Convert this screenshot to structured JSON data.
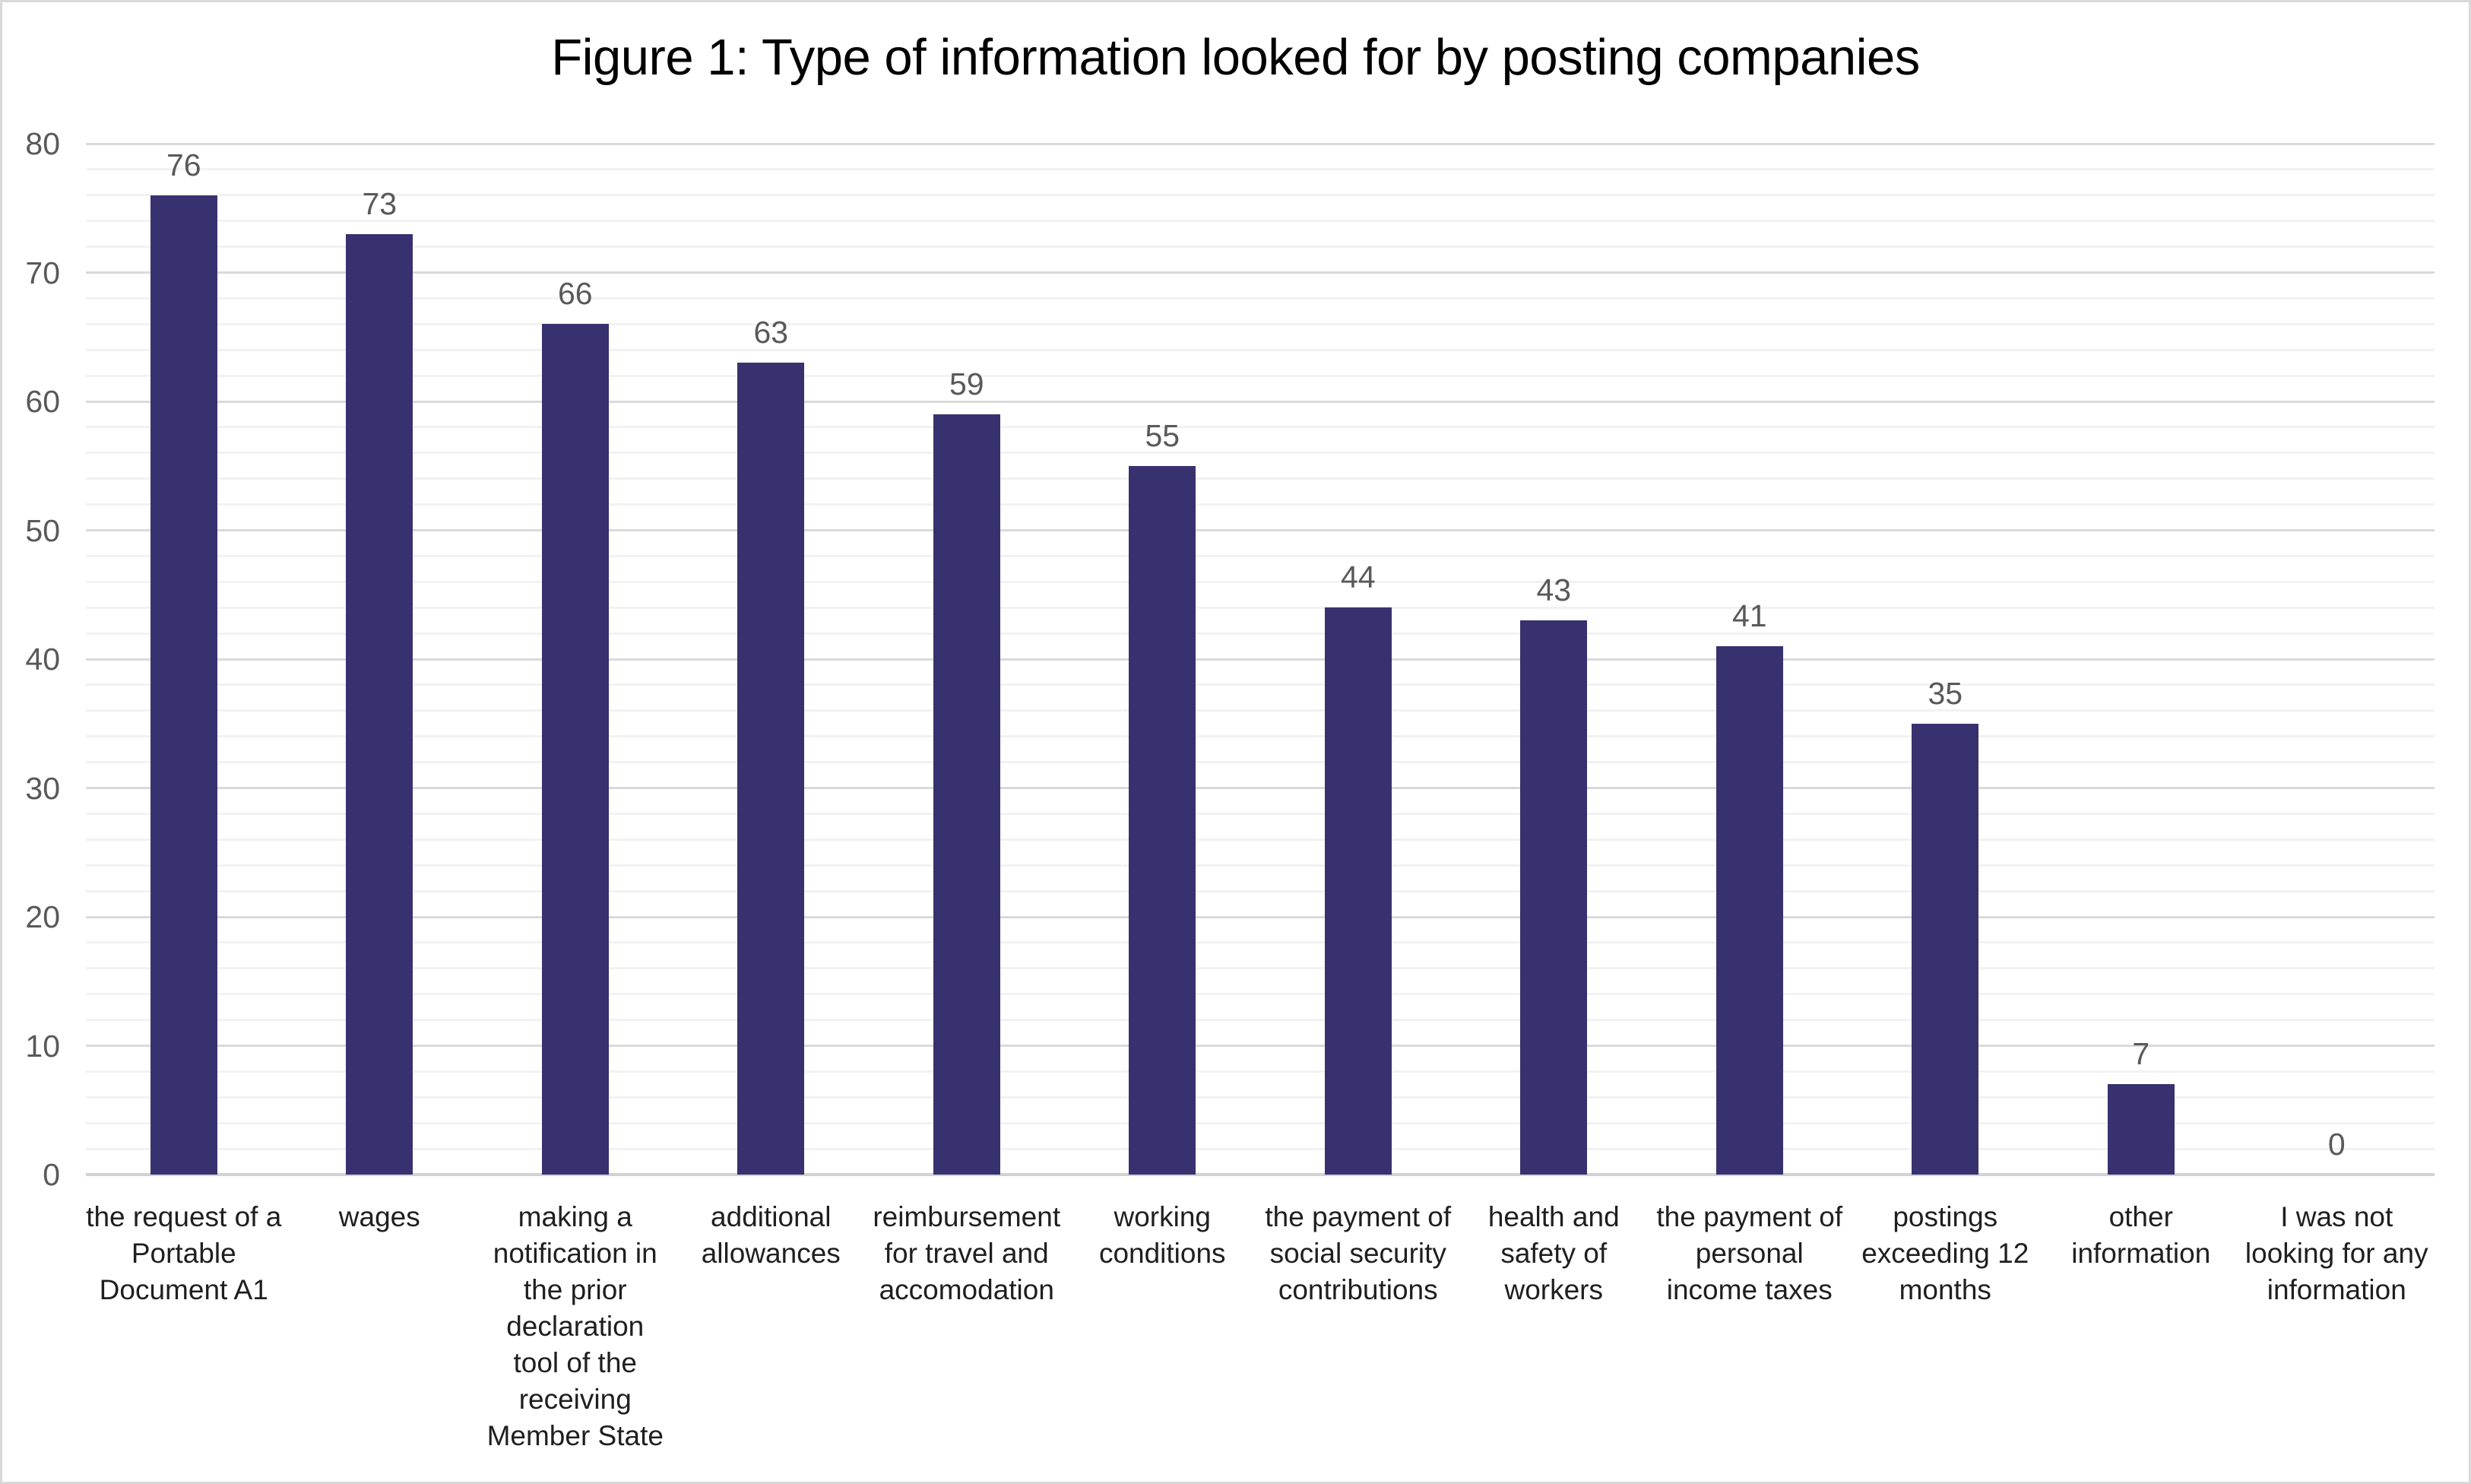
{
  "chart_data": {
    "type": "bar",
    "title": "Figure 1: Type of information looked for by posting companies",
    "categories": [
      "the request of a\nPortable\nDocument A1",
      "wages",
      "making a\nnotification in\nthe prior\ndeclaration\ntool of the\nreceiving\nMember State",
      "additional\nallowances",
      "reimbursement\nfor travel and\naccomodation",
      "working\nconditions",
      "the payment of\nsocial security\ncontributions",
      "health and\nsafety of\nworkers",
      "the payment of\npersonal\nincome taxes",
      "postings\nexceeding 12\nmonths",
      "other\ninformation",
      "I was not\nlooking for any\ninformation"
    ],
    "values": [
      76,
      73,
      66,
      63,
      59,
      55,
      44,
      43,
      41,
      35,
      7,
      0
    ],
    "data_labels": [
      "76",
      "73",
      "66",
      "63",
      "59",
      "55",
      "44",
      "43",
      "41",
      "35",
      "7",
      "0"
    ],
    "xlabel": "",
    "ylabel": "",
    "ylim": [
      0,
      80
    ],
    "y_tick_step": 10,
    "y_minor_gridline_step": 2,
    "y_tick_labels": [
      "0",
      "10",
      "20",
      "30",
      "40",
      "50",
      "60",
      "70",
      "80"
    ],
    "grid": "horizontal major and minor, on",
    "legend": "none",
    "colors": {
      "bar_fill": "#38316F",
      "major_gridline": "#DADADA",
      "minor_gridline": "#F2F2F2",
      "axis_line": "#D2D2D2",
      "y_tick_label": "#595959",
      "data_label": "#595959",
      "category_label": "#1F1F1F",
      "title": "#000000",
      "chart_border": "#D9D9D9",
      "background": "#FFFFFF"
    }
  }
}
